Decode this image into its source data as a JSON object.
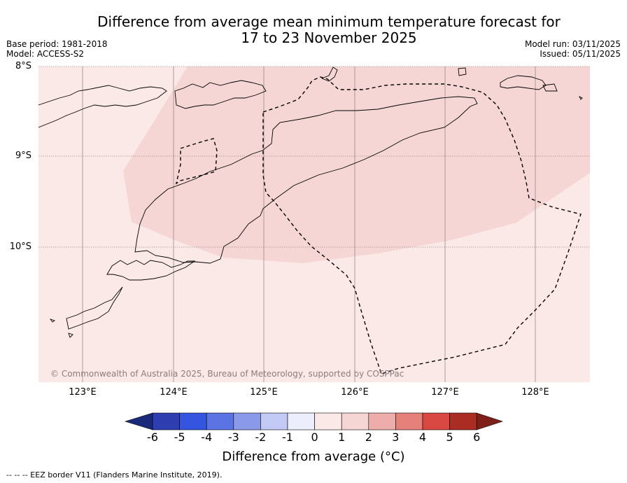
{
  "title": {
    "line1": "Difference from average mean minimum temperature forecast for",
    "line2": "17 to 23 November 2025"
  },
  "info_left": {
    "base_period": "Base period: 1981-2018",
    "model": "Model: ACCESS-S2"
  },
  "info_right": {
    "model_run": "Model run: 03/11/2025",
    "issued": "Issued: 05/11/2025"
  },
  "lat_labels": [
    "8°S",
    "9°S",
    "10°S"
  ],
  "lon_labels": [
    "123°E",
    "124°E",
    "125°E",
    "126°E",
    "127°E",
    "128°E"
  ],
  "map_regions": [
    {
      "name": "anomaly 0 to 1 °C",
      "color": "#fbe9e7"
    },
    {
      "name": "anomaly 1 to 2 °C",
      "color": "#f5d6d5"
    }
  ],
  "copyright": "© Commonwealth of Australia 2025, Bureau of Meteorology, supported by COSPPac",
  "colorbar": {
    "ticks": [
      "-6",
      "-5",
      "-4",
      "-3",
      "-2",
      "-1",
      "0",
      "1",
      "2",
      "3",
      "4",
      "5",
      "6"
    ],
    "colors": [
      "#1a2a7a",
      "#2c3eb0",
      "#3355e0",
      "#5c73e4",
      "#8a9ae8",
      "#c2c9f4",
      "#eceefc",
      "#fbe9e7",
      "#f5d6d5",
      "#edaea9",
      "#e5807a",
      "#d94840",
      "#ab2c22",
      "#7e1f1a"
    ],
    "label": "Difference from average (°C)"
  },
  "footnote": "--  --  -- EEZ border V11 (Flanders Marine Institute, 2019)."
}
